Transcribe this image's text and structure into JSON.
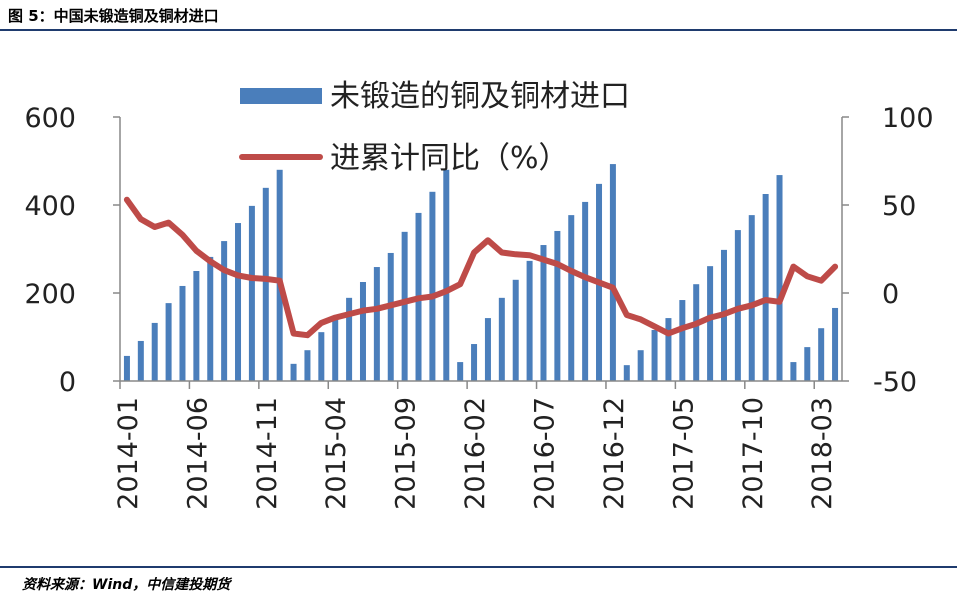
{
  "header": {
    "title": "图 5：中国未锻造铜及铜材进口"
  },
  "footer": {
    "source": "资料来源：Wind，中信建投期货"
  },
  "chart_data": {
    "type": "bar+line",
    "categories": [
      "2014-01",
      "2014-02",
      "2014-03",
      "2014-04",
      "2014-05",
      "2014-06",
      "2014-07",
      "2014-08",
      "2014-09",
      "2014-10",
      "2014-11",
      "2014-12",
      "2015-01",
      "2015-02",
      "2015-03",
      "2015-04",
      "2015-05",
      "2015-06",
      "2015-07",
      "2015-08",
      "2015-09",
      "2015-10",
      "2015-11",
      "2015-12",
      "2016-01",
      "2016-02",
      "2016-03",
      "2016-04",
      "2016-05",
      "2016-06",
      "2016-07",
      "2016-08",
      "2016-09",
      "2016-10",
      "2016-11",
      "2016-12",
      "2017-01",
      "2017-02",
      "2017-03",
      "2017-04",
      "2017-05",
      "2017-06",
      "2017-07",
      "2017-08",
      "2017-09",
      "2017-10",
      "2017-11",
      "2017-12",
      "2018-01",
      "2018-02",
      "2018-03",
      "2018-04"
    ],
    "x_tick_labels": [
      "2014-01",
      "2014-06",
      "2014-11",
      "2015-04",
      "2015-09",
      "2016-02",
      "2016-07",
      "2016-12",
      "2017-05",
      "2017-10",
      "2018-03"
    ],
    "series": [
      {
        "name": "未锻造的铜及铜材进口",
        "type": "bar",
        "axis": "left",
        "color": "#4a7ebb",
        "values": [
          57,
          91,
          132,
          177,
          216,
          250,
          282,
          318,
          359,
          398,
          439,
          480,
          39,
          70,
          111,
          148,
          189,
          225,
          259,
          291,
          339,
          382,
          430,
          480,
          43,
          84,
          143,
          189,
          230,
          273,
          309,
          341,
          377,
          407,
          448,
          493,
          36,
          70,
          116,
          143,
          184,
          220,
          261,
          298,
          343,
          377,
          425,
          468,
          43,
          77,
          120,
          166
        ]
      },
      {
        "name": "进累计同比（%）",
        "type": "line",
        "axis": "right",
        "color": "#be4b48",
        "values": [
          53,
          42,
          37.5,
          40,
          33,
          24,
          18,
          13,
          10,
          8.5,
          8,
          7,
          -23,
          -24,
          -17,
          -14,
          -12,
          -10,
          -9,
          -7,
          -5,
          -3,
          -2,
          1,
          5,
          23,
          30,
          23,
          22,
          21.5,
          19,
          16.5,
          12.5,
          9,
          6,
          3,
          -12.5,
          -15,
          -19,
          -23,
          -20,
          -17.5,
          -14,
          -12,
          -9,
          -7,
          -4,
          -5,
          15,
          9.5,
          7,
          15
        ]
      }
    ],
    "y_left": {
      "range": [
        0,
        600
      ],
      "ticks": [
        "0",
        "200",
        "400",
        "600"
      ]
    },
    "y_right": {
      "range": [
        -50,
        100
      ],
      "ticks": [
        "-50",
        "0",
        "50",
        "100"
      ]
    },
    "grid": false,
    "legend": "top-center"
  }
}
